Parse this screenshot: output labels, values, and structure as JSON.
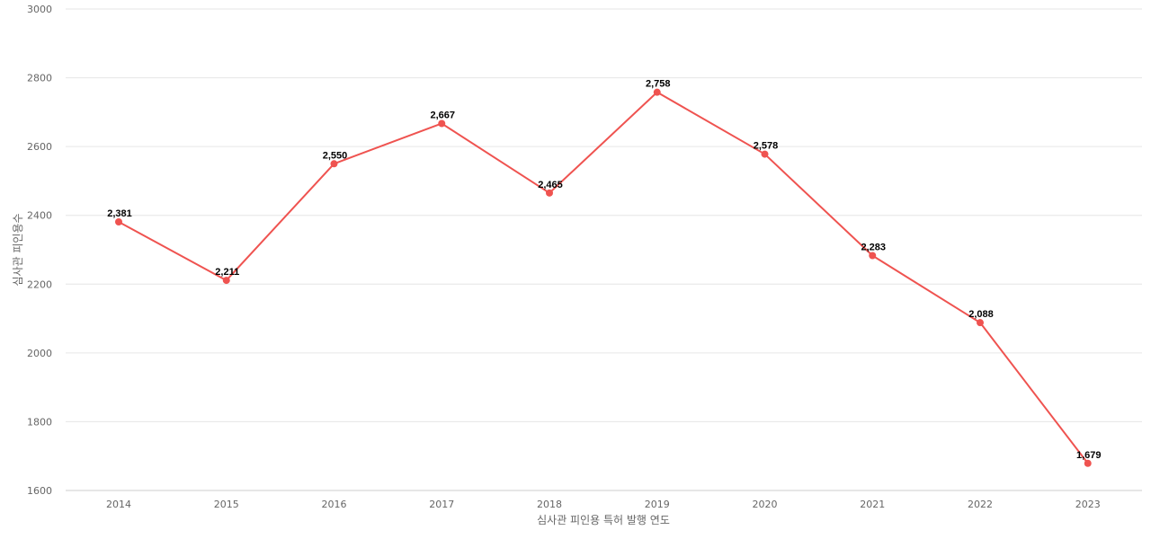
{
  "chart_data": {
    "type": "line",
    "title": "",
    "xlabel": "심사관 피인용 특허 발행 연도",
    "ylabel": "심사관 피인용수",
    "categories": [
      "2014",
      "2015",
      "2016",
      "2017",
      "2018",
      "2019",
      "2020",
      "2021",
      "2022",
      "2023"
    ],
    "series": [
      {
        "values": [
          2381,
          2211,
          2550,
          2667,
          2465,
          2758,
          2578,
          2283,
          2088,
          1679
        ],
        "labels": [
          "2,381",
          "2,211",
          "2,550",
          "2,667",
          "2,465",
          "2,758",
          "2,578",
          "2,283",
          "2,088",
          "1,679"
        ]
      }
    ],
    "ylim": [
      1600,
      3000
    ],
    "yticks": [
      "1600",
      "1800",
      "2000",
      "2200",
      "2400",
      "2600",
      "2800",
      "3000"
    ],
    "grid": true,
    "legend": "none",
    "colors": {
      "line": "#ef5350",
      "grid": "#e6e6e6",
      "text": "#666666"
    }
  }
}
